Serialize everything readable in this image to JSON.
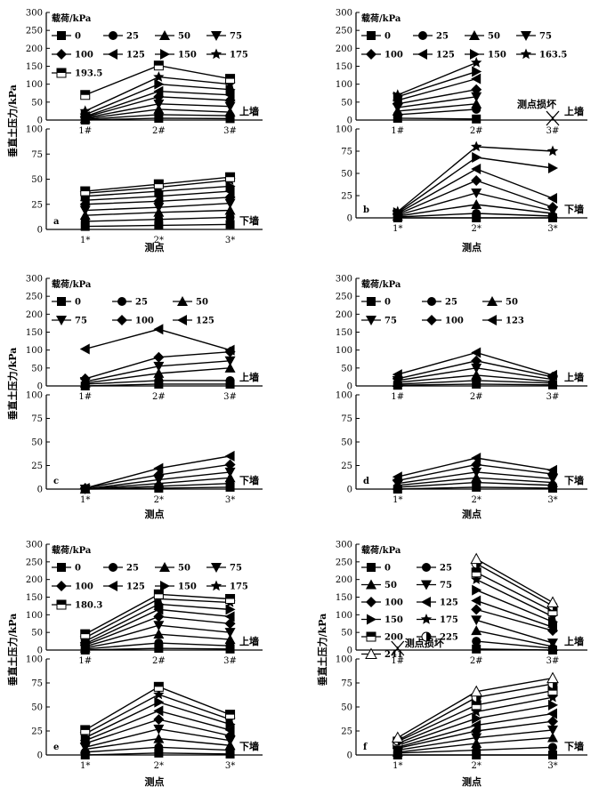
{
  "chart_data": [
    {
      "panel": "a",
      "type": "line",
      "ylabel": "垂直土压力/kPa",
      "xlabel": "测点",
      "legend_title": "载荷/kPa",
      "legend_entries": [
        "0",
        "25",
        "50",
        "75",
        "100",
        "125",
        "150",
        "175",
        "193.5"
      ],
      "top": {
        "label": "上墙",
        "categories": [
          "1#",
          "2#",
          "3#"
        ],
        "ylim": [
          0,
          300
        ],
        "yticks": [
          "0",
          "50",
          "100",
          "150",
          "200",
          "250",
          "300"
        ],
        "series": [
          {
            "name": "0",
            "values": [
              0,
              5,
              4
            ]
          },
          {
            "name": "25",
            "values": [
              2,
              15,
              12
            ]
          },
          {
            "name": "50",
            "values": [
              4,
              30,
              22
            ]
          },
          {
            "name": "75",
            "values": [
              6,
              45,
              38
            ]
          },
          {
            "name": "100",
            "values": [
              8,
              65,
              55
            ]
          },
          {
            "name": "125",
            "values": [
              10,
              80,
              70
            ]
          },
          {
            "name": "150",
            "values": [
              15,
              100,
              85
            ]
          },
          {
            "name": "175",
            "values": [
              25,
              120,
              100
            ]
          },
          {
            "name": "193.5",
            "values": [
              70,
              152,
              115
            ]
          }
        ]
      },
      "bottom": {
        "label": "下墙",
        "categories": [
          "1*",
          "2*",
          "3*"
        ],
        "ylim": [
          0,
          100
        ],
        "yticks": [
          "0",
          "25",
          "50",
          "75",
          "100"
        ],
        "series": [
          {
            "name": "0",
            "values": [
              3,
              4,
              5
            ]
          },
          {
            "name": "25",
            "values": [
              8,
              10,
              12
            ]
          },
          {
            "name": "50",
            "values": [
              14,
              17,
              19
            ]
          },
          {
            "name": "75",
            "values": [
              19,
              22,
              26
            ]
          },
          {
            "name": "100",
            "values": [
              25,
              28,
              32
            ]
          },
          {
            "name": "125",
            "values": [
              29,
              33,
              38
            ]
          },
          {
            "name": "150",
            "values": [
              33,
              38,
              43
            ]
          },
          {
            "name": "175",
            "values": [
              36,
              42,
              49
            ]
          },
          {
            "name": "193.5",
            "values": [
              38,
              45,
              52
            ]
          }
        ]
      }
    },
    {
      "panel": "b",
      "type": "line",
      "ylabel": "",
      "xlabel": "测点",
      "legend_title": "载荷/kPa",
      "legend_entries": [
        "0",
        "25",
        "50",
        "75",
        "100",
        "125",
        "150",
        "163.5"
      ],
      "top": {
        "label": "上墙",
        "annotation": "测点损坏",
        "categories": [
          "1#",
          "2#",
          "3#"
        ],
        "ylim": [
          0,
          300
        ],
        "yticks": [
          "0",
          "50",
          "100",
          "150",
          "200",
          "250",
          "300"
        ],
        "series": [
          {
            "name": "0",
            "values": [
              5,
              3
            ]
          },
          {
            "name": "25",
            "values": [
              15,
              30
            ]
          },
          {
            "name": "50",
            "values": [
              25,
              45
            ]
          },
          {
            "name": "75",
            "values": [
              35,
              65
            ]
          },
          {
            "name": "100",
            "values": [
              45,
              85
            ]
          },
          {
            "name": "125",
            "values": [
              55,
              115
            ]
          },
          {
            "name": "150",
            "values": [
              65,
              135
            ]
          },
          {
            "name": "163.5",
            "values": [
              70,
              160
            ]
          }
        ]
      },
      "bottom": {
        "label": "下墙",
        "categories": [
          "1*",
          "2*",
          "3*"
        ],
        "ylim": [
          0,
          100
        ],
        "yticks": [
          "0",
          "25",
          "50",
          "75",
          "100"
        ],
        "series": [
          {
            "name": "0",
            "values": [
              0,
              0,
              0
            ]
          },
          {
            "name": "25",
            "values": [
              1,
              5,
              2
            ]
          },
          {
            "name": "50",
            "values": [
              2,
              15,
              5
            ]
          },
          {
            "name": "75",
            "values": [
              3,
              28,
              8
            ]
          },
          {
            "name": "100",
            "values": [
              4,
              42,
              12
            ]
          },
          {
            "name": "125",
            "values": [
              5,
              55,
              22
            ]
          },
          {
            "name": "150",
            "values": [
              6,
              68,
              56
            ]
          },
          {
            "name": "163.5",
            "values": [
              7,
              80,
              75
            ]
          }
        ]
      }
    },
    {
      "panel": "c",
      "type": "line",
      "ylabel": "垂直土压力/kPa",
      "xlabel": "测点",
      "legend_title": "载荷/kPa",
      "legend_entries": [
        "0",
        "25",
        "50",
        "75",
        "100",
        "125"
      ],
      "top": {
        "label": "上墙",
        "categories": [
          "1#",
          "2#",
          "3#"
        ],
        "ylim": [
          0,
          300
        ],
        "yticks": [
          "0",
          "50",
          "100",
          "150",
          "200",
          "250",
          "300"
        ],
        "series": [
          {
            "name": "0",
            "values": [
              0,
              5,
              5
            ]
          },
          {
            "name": "25",
            "values": [
              5,
              15,
              15
            ]
          },
          {
            "name": "50",
            "values": [
              8,
              35,
              50
            ]
          },
          {
            "name": "75",
            "values": [
              12,
              55,
              70
            ]
          },
          {
            "name": "100",
            "values": [
              20,
              80,
              95
            ]
          },
          {
            "name": "125",
            "values": [
              103,
              158,
              100
            ]
          }
        ]
      },
      "bottom": {
        "label": "下墙",
        "categories": [
          "1*",
          "2*",
          "3*"
        ],
        "ylim": [
          0,
          100
        ],
        "yticks": [
          "0",
          "25",
          "50",
          "75",
          "100"
        ],
        "series": [
          {
            "name": "0",
            "values": [
              0,
              1,
              2
            ]
          },
          {
            "name": "25",
            "values": [
              0,
              3,
              6
            ]
          },
          {
            "name": "50",
            "values": [
              0,
              6,
              12
            ]
          },
          {
            "name": "75",
            "values": [
              0,
              10,
              18
            ]
          },
          {
            "name": "100",
            "values": [
              1,
              15,
              26
            ]
          },
          {
            "name": "125",
            "values": [
              1,
              22,
              35
            ]
          }
        ]
      }
    },
    {
      "panel": "d",
      "type": "line",
      "ylabel": "",
      "xlabel": "测点",
      "legend_title": "载荷/kPa",
      "legend_entries": [
        "0",
        "25",
        "50",
        "75",
        "100",
        "123"
      ],
      "top": {
        "label": "上墙",
        "categories": [
          "1#",
          "2#",
          "3#"
        ],
        "ylim": [
          0,
          300
        ],
        "yticks": [
          "0",
          "50",
          "100",
          "150",
          "200",
          "250",
          "300"
        ],
        "series": [
          {
            "name": "0",
            "values": [
              2,
              5,
              3
            ]
          },
          {
            "name": "25",
            "values": [
              5,
              15,
              8
            ]
          },
          {
            "name": "50",
            "values": [
              10,
              30,
              12
            ]
          },
          {
            "name": "75",
            "values": [
              15,
              50,
              18
            ]
          },
          {
            "name": "100",
            "values": [
              20,
              70,
              25
            ]
          },
          {
            "name": "123",
            "values": [
              32,
              93,
              30
            ]
          }
        ]
      },
      "bottom": {
        "label": "下墙",
        "categories": [
          "1*",
          "2*",
          "3*"
        ],
        "ylim": [
          0,
          100
        ],
        "yticks": [
          "0",
          "25",
          "50",
          "75",
          "100"
        ],
        "series": [
          {
            "name": "0",
            "values": [
              0,
              2,
              1
            ]
          },
          {
            "name": "25",
            "values": [
              2,
              7,
              4
            ]
          },
          {
            "name": "50",
            "values": [
              4,
              12,
              7
            ]
          },
          {
            "name": "75",
            "values": [
              6,
              18,
              11
            ]
          },
          {
            "name": "100",
            "values": [
              9,
              26,
              16
            ]
          },
          {
            "name": "123",
            "values": [
              13,
              33,
              20
            ]
          }
        ]
      }
    },
    {
      "panel": "e",
      "type": "line",
      "ylabel": "垂直土压力/kPa",
      "xlabel": "测点",
      "legend_title": "载荷/kPa",
      "legend_entries": [
        "0",
        "25",
        "50",
        "75",
        "100",
        "125",
        "150",
        "175",
        "180.3"
      ],
      "top": {
        "label": "上墙",
        "categories": [
          "1#",
          "2#",
          "3#"
        ],
        "ylim": [
          0,
          300
        ],
        "yticks": [
          "0",
          "50",
          "100",
          "150",
          "200",
          "250",
          "300"
        ],
        "series": [
          {
            "name": "0",
            "values": [
              0,
              5,
              3
            ]
          },
          {
            "name": "25",
            "values": [
              3,
              20,
              12
            ]
          },
          {
            "name": "50",
            "values": [
              6,
              45,
              30
            ]
          },
          {
            "name": "75",
            "values": [
              10,
              70,
              50
            ]
          },
          {
            "name": "100",
            "values": [
              14,
              95,
              75
            ]
          },
          {
            "name": "125",
            "values": [
              18,
              115,
              95
            ]
          },
          {
            "name": "150",
            "values": [
              25,
              130,
              115
            ]
          },
          {
            "name": "175",
            "values": [
              35,
              145,
              135
            ]
          },
          {
            "name": "180.3",
            "values": [
              45,
              158,
              145
            ]
          }
        ]
      },
      "bottom": {
        "label": "下墙",
        "categories": [
          "1*",
          "2*",
          "3*"
        ],
        "ylim": [
          0,
          100
        ],
        "yticks": [
          "0",
          "25",
          "50",
          "75",
          "100"
        ],
        "series": [
          {
            "name": "0",
            "values": [
              0,
              2,
              1
            ]
          },
          {
            "name": "25",
            "values": [
              3,
              8,
              5
            ]
          },
          {
            "name": "50",
            "values": [
              6,
              17,
              10
            ]
          },
          {
            "name": "75",
            "values": [
              8,
              27,
              15
            ]
          },
          {
            "name": "100",
            "values": [
              12,
              37,
              20
            ]
          },
          {
            "name": "125",
            "values": [
              15,
              46,
              26
            ]
          },
          {
            "name": "150",
            "values": [
              18,
              55,
              32
            ]
          },
          {
            "name": "175",
            "values": [
              22,
              63,
              37
            ]
          },
          {
            "name": "180.3",
            "values": [
              26,
              71,
              42
            ]
          }
        ]
      }
    },
    {
      "panel": "f",
      "type": "line",
      "ylabel": "垂直土压力/kPa",
      "xlabel": "测点",
      "legend_title": "载荷/kPa",
      "legend_entries": [
        "0",
        "25",
        "50",
        "75",
        "100",
        "125",
        "150",
        "175",
        "200",
        "225",
        "241"
      ],
      "top": {
        "label": "上墙",
        "annotation": "测点损坏",
        "categories": [
          "1#",
          "2#",
          "3#"
        ],
        "ylim": [
          0,
          300
        ],
        "yticks": [
          "0",
          "50",
          "100",
          "150",
          "200",
          "250",
          "300"
        ],
        "series": [
          {
            "name": "0",
            "values": [
              null,
              3,
              0
            ]
          },
          {
            "name": "25",
            "values": [
              null,
              25,
              5
            ]
          },
          {
            "name": "50",
            "values": [
              null,
              55,
              10
            ]
          },
          {
            "name": "75",
            "values": [
              null,
              85,
              20
            ]
          },
          {
            "name": "100",
            "values": [
              null,
              115,
              55
            ]
          },
          {
            "name": "125",
            "values": [
              null,
              140,
              65
            ]
          },
          {
            "name": "150",
            "values": [
              null,
              170,
              80
            ]
          },
          {
            "name": "175",
            "values": [
              null,
              200,
              95
            ]
          },
          {
            "name": "200",
            "values": [
              null,
              220,
              110
            ]
          },
          {
            "name": "225",
            "values": [
              null,
              245,
              125
            ]
          },
          {
            "name": "241",
            "values": [
              null,
              258,
              135
            ]
          }
        ]
      },
      "bottom": {
        "label": "下墙",
        "categories": [
          "1*",
          "2*",
          "3*"
        ],
        "ylim": [
          0,
          100
        ],
        "yticks": [
          "0",
          "25",
          "50",
          "75",
          "100"
        ],
        "series": [
          {
            "name": "0",
            "values": [
              0,
              0,
              0
            ]
          },
          {
            "name": "25",
            "values": [
              2,
              5,
              8
            ]
          },
          {
            "name": "50",
            "values": [
              3,
              12,
              18
            ]
          },
          {
            "name": "75",
            "values": [
              5,
              18,
              26
            ]
          },
          {
            "name": "100",
            "values": [
              7,
              25,
              35
            ]
          },
          {
            "name": "125",
            "values": [
              8,
              31,
              43
            ]
          },
          {
            "name": "150",
            "values": [
              10,
              38,
              52
            ]
          },
          {
            "name": "175",
            "values": [
              12,
              45,
              60
            ]
          },
          {
            "name": "200",
            "values": [
              14,
              52,
              67
            ]
          },
          {
            "name": "225",
            "values": [
              15,
              60,
              74
            ]
          },
          {
            "name": "241",
            "values": [
              18,
              66,
              80
            ]
          }
        ]
      }
    }
  ]
}
